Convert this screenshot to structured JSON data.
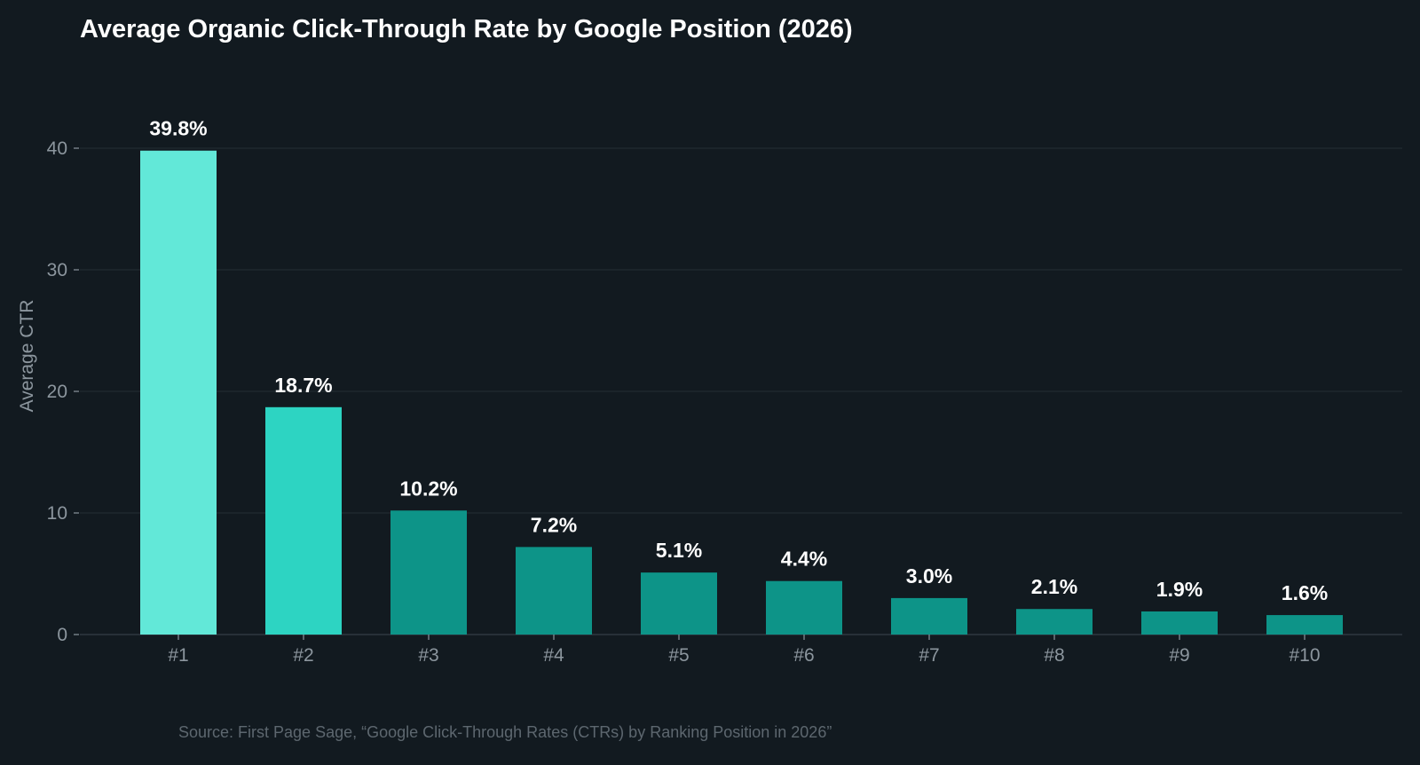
{
  "chart_data": {
    "type": "bar",
    "title": "Average Organic Click-Through Rate by Google Position (2026)",
    "xlabel": "",
    "ylabel": "Average CTR",
    "categories": [
      "#1",
      "#2",
      "#3",
      "#4",
      "#5",
      "#6",
      "#7",
      "#8",
      "#9",
      "#10"
    ],
    "values": [
      39.8,
      18.7,
      10.2,
      7.2,
      5.1,
      4.4,
      3.0,
      2.1,
      1.9,
      1.6
    ],
    "data_labels": [
      "39.8%",
      "18.7%",
      "10.2%",
      "7.2%",
      "5.1%",
      "4.4%",
      "3.0%",
      "2.1%",
      "1.9%",
      "1.6%"
    ],
    "ylim": [
      0,
      43
    ],
    "yticks": [
      0,
      10,
      20,
      30,
      40
    ],
    "grid": true,
    "legend": "none",
    "bar_colors": [
      "#62e8d8",
      "#2dd4c2",
      "#0d9488",
      "#0d9488",
      "#0d9488",
      "#0d9488",
      "#0d9488",
      "#0d9488",
      "#0d9488",
      "#0d9488"
    ],
    "source": "Source: First Page Sage, “Google Click-Through Rates (CTRs) by Ranking Position in 2026”"
  },
  "colors": {
    "background": "#121a20",
    "grid": "#242d35",
    "axis": "#2e3840",
    "text": "#ffffff",
    "tick_text": "#8c969e",
    "source_text": "#5d676f"
  }
}
